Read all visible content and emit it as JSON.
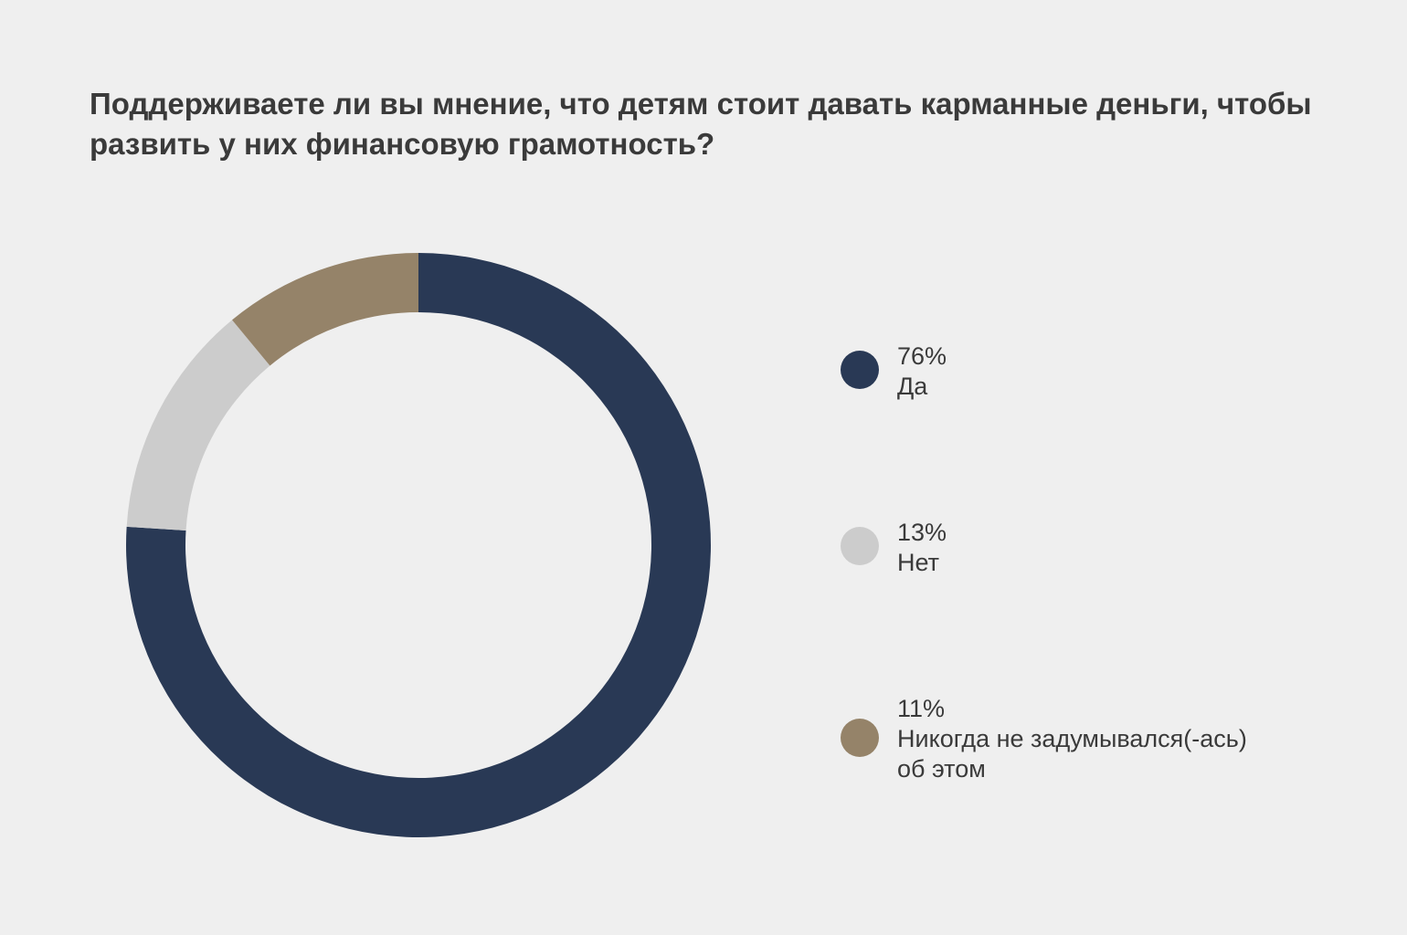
{
  "chart_data": {
    "type": "pie",
    "title": "Поддерживаете ли вы мнение, что детям стоит давать карманные деньги, чтобы развить у них финансовую грамотность?",
    "donut": true,
    "legend_position": "right",
    "slices": [
      {
        "label": "Да",
        "value": 76,
        "value_label": "76%",
        "color": "#293955"
      },
      {
        "label": "Нет",
        "value": 13,
        "value_label": "13%",
        "color": "#cccccc"
      },
      {
        "label": "Никогда не задумывался(-ась) об этом",
        "value": 11,
        "value_label": "11%",
        "color": "#958369"
      }
    ]
  },
  "colors": {
    "background": "#efefef",
    "text": "#3a3a3a"
  }
}
